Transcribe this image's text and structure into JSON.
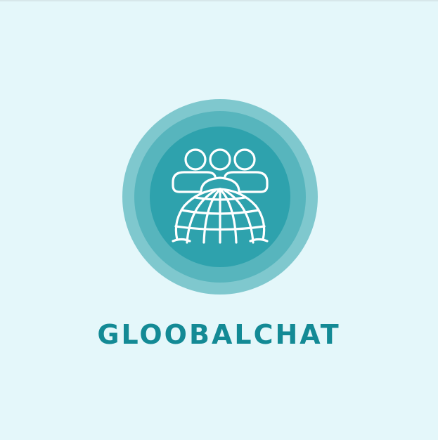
{
  "brand": {
    "name": "GLOOBALCHAT"
  },
  "logo": {
    "icon": "people-globe-icon",
    "colors": {
      "background": "#e4f7fa",
      "outer_ring": "#7fc8ce",
      "middle_ring": "#57b5bd",
      "inner_disc": "#2ea2ad",
      "icon_stroke": "#ffffff",
      "text": "#138a95"
    }
  }
}
